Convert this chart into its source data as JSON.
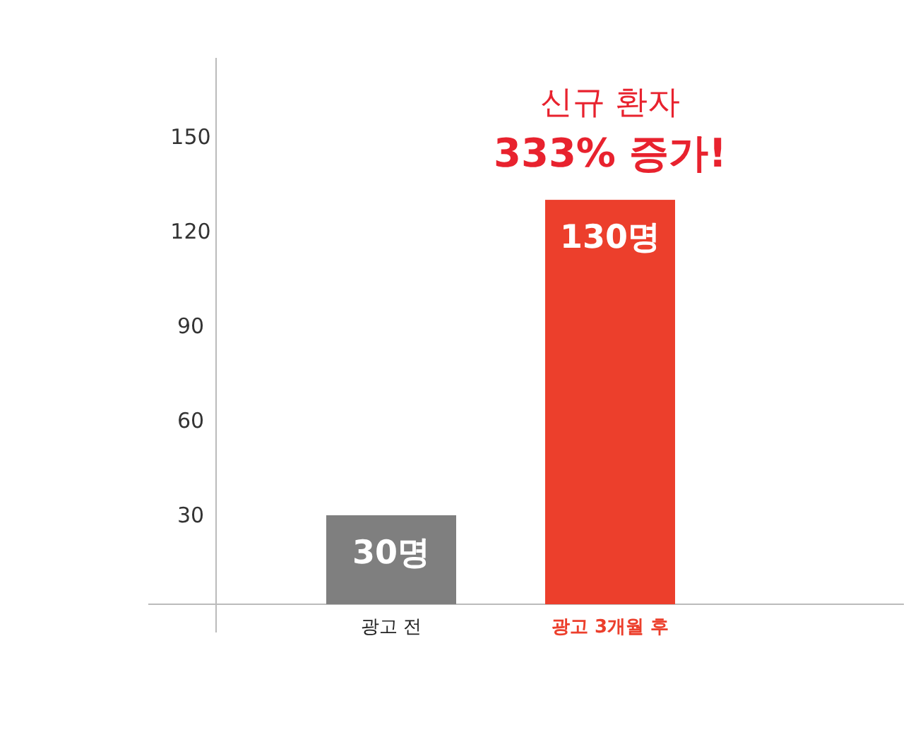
{
  "chart_data": {
    "type": "bar",
    "title": "신규 환자",
    "subtitle": "333% 증가!",
    "categories": [
      "광고 전",
      "광고 3개월 후"
    ],
    "values": [
      30,
      130
    ],
    "colors": [
      "#7f7f7f",
      "#ec3f2c"
    ],
    "value_labels": [
      "30명",
      "130명"
    ],
    "ylim": [
      0,
      175
    ],
    "yticks": [
      30,
      60,
      90,
      120,
      150
    ],
    "grid": false
  }
}
